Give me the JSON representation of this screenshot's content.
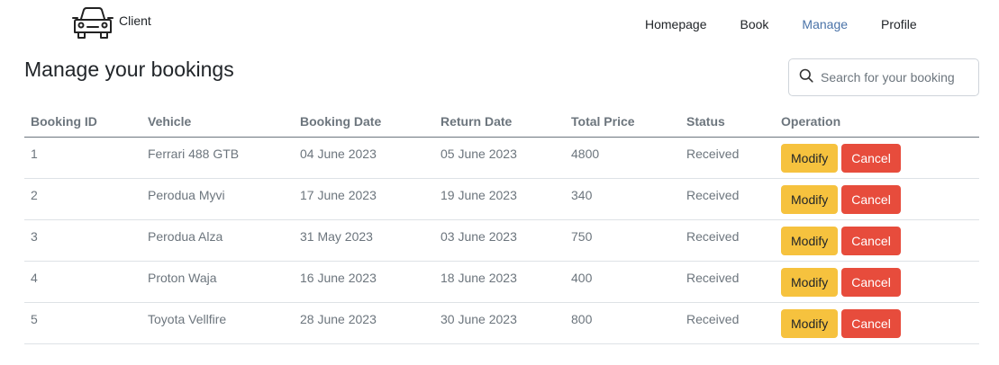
{
  "brand": {
    "label": "Client",
    "icon": "car-icon"
  },
  "nav": {
    "items": [
      {
        "label": "Homepage"
      },
      {
        "label": "Book"
      },
      {
        "label": "Manage"
      },
      {
        "label": "Profile"
      }
    ],
    "active": "Manage"
  },
  "page": {
    "title": "Manage your bookings"
  },
  "search": {
    "placeholder": "Search for your booking",
    "icon": "search-icon"
  },
  "table": {
    "headers": [
      "Booking ID",
      "Vehicle",
      "Booking Date",
      "Return Date",
      "Total Price",
      "Status",
      "Operation"
    ],
    "rows": [
      {
        "id": "1",
        "vehicle": "Ferrari 488 GTB",
        "booking_date": "04 June 2023",
        "return_date": "05 June 2023",
        "total_price": "4800",
        "status": "Received"
      },
      {
        "id": "2",
        "vehicle": "Perodua Myvi",
        "booking_date": "17 June 2023",
        "return_date": "19 June 2023",
        "total_price": "340",
        "status": "Received"
      },
      {
        "id": "3",
        "vehicle": "Perodua Alza",
        "booking_date": "31 May 2023",
        "return_date": "03 June 2023",
        "total_price": "750",
        "status": "Received"
      },
      {
        "id": "4",
        "vehicle": "Proton Waja",
        "booking_date": "16 June 2023",
        "return_date": "18 June 2023",
        "total_price": "400",
        "status": "Received"
      },
      {
        "id": "5",
        "vehicle": "Toyota Vellfire",
        "booking_date": "28 June 2023",
        "return_date": "30 June 2023",
        "total_price": "800",
        "status": "Received"
      }
    ],
    "modify_label": "Modify",
    "cancel_label": "Cancel"
  },
  "colors": {
    "nav_active": "#4a73a8",
    "modify_button": "#f6c23e",
    "cancel_button": "#e74c3c",
    "muted_text": "#6c757d"
  }
}
